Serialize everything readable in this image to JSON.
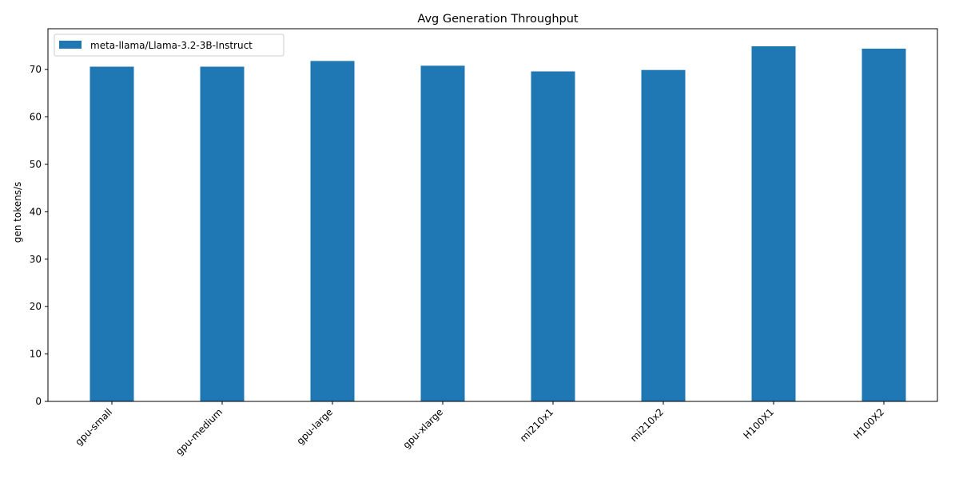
{
  "chart_data": {
    "type": "bar",
    "title": "Avg Generation Throughput",
    "xlabel": "",
    "ylabel": "gen tokens/s",
    "categories": [
      "gpu-small",
      "gpu-medium",
      "gpu-large",
      "gpu-xlarge",
      "mi210x1",
      "mi210x2",
      "H100X1",
      "H100X2"
    ],
    "series": [
      {
        "name": "meta-llama/Llama-3.2-3B-Instruct",
        "color": "#1f77b4",
        "values": [
          70.6,
          70.6,
          71.8,
          70.8,
          69.6,
          69.9,
          74.9,
          74.4
        ]
      }
    ],
    "ylim": [
      0,
      78.6
    ],
    "yticks": [
      0,
      10,
      20,
      30,
      40,
      50,
      60,
      70
    ],
    "xtick_rotation": "45 degrees",
    "grid": false,
    "legend_position": "upper-left"
  }
}
